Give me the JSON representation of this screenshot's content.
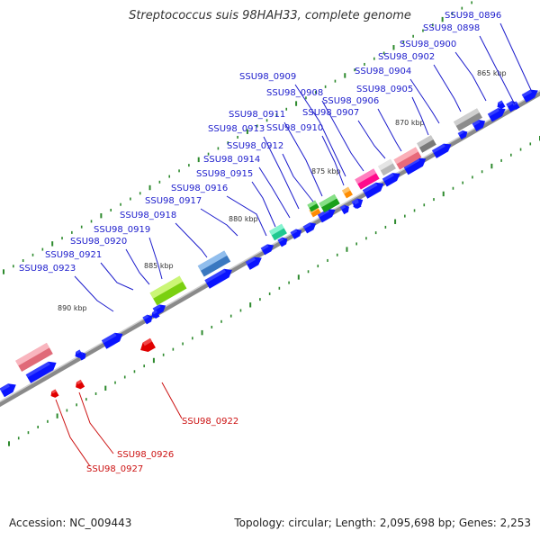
{
  "header": {
    "title": "Streptococcus suis 98HAH33, complete genome"
  },
  "footer": {
    "accession": "Accession: NC_009443",
    "summary": "Topology: circular; Length: 2,095,698 bp; Genes: 2,253"
  },
  "colors": {
    "gene_forward": "#0a14ff",
    "gene_highlight": "#e00000",
    "label_blue": "#1c1ccc",
    "label_red": "#cc1111",
    "backbone": "#8a8a8a",
    "tick_green": "#2d8a2d"
  },
  "scale_labels": [
    "865 kbp",
    "870 kbp",
    "875 kbp",
    "880 kbp",
    "885 kbp",
    "890 kbp"
  ],
  "gene_labels": [
    {
      "name": "SSU98_0896",
      "color": "blue"
    },
    {
      "name": "SSU98_0898",
      "color": "blue"
    },
    {
      "name": "SSU98_0900",
      "color": "blue"
    },
    {
      "name": "SSU98_0902",
      "color": "blue"
    },
    {
      "name": "SSU98_0904",
      "color": "blue"
    },
    {
      "name": "SSU98_0905",
      "color": "blue"
    },
    {
      "name": "SSU98_0906",
      "color": "blue"
    },
    {
      "name": "SSU98_0907",
      "color": "blue"
    },
    {
      "name": "SSU98_0908",
      "color": "blue"
    },
    {
      "name": "SSU98_0909",
      "color": "blue"
    },
    {
      "name": "SSU98_0910",
      "color": "blue"
    },
    {
      "name": "SSU98_0911",
      "color": "blue"
    },
    {
      "name": "SSU98_0912",
      "color": "blue"
    },
    {
      "name": "SSU98_0913",
      "color": "blue"
    },
    {
      "name": "SSU98_0914",
      "color": "blue"
    },
    {
      "name": "SSU98_0915",
      "color": "blue"
    },
    {
      "name": "SSU98_0916",
      "color": "blue"
    },
    {
      "name": "SSU98_0917",
      "color": "blue"
    },
    {
      "name": "SSU98_0918",
      "color": "blue"
    },
    {
      "name": "SSU98_0919",
      "color": "blue"
    },
    {
      "name": "SSU98_0920",
      "color": "blue"
    },
    {
      "name": "SSU98_0921",
      "color": "blue"
    },
    {
      "name": "SSU98_0923",
      "color": "blue"
    },
    {
      "name": "SSU98_0922",
      "color": "red"
    },
    {
      "name": "SSU98_0926",
      "color": "red"
    },
    {
      "name": "SSU98_0927",
      "color": "red"
    }
  ]
}
